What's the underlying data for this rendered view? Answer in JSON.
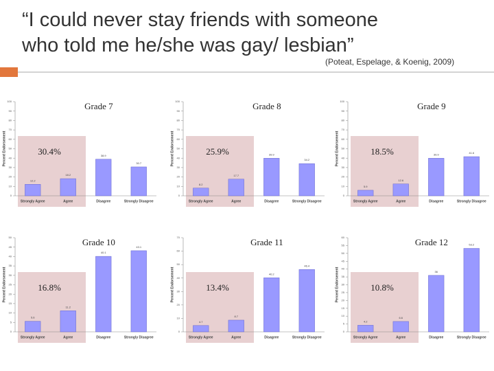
{
  "title": "“I could never stay friends with someone who told me he/she was gay/ lesbian”",
  "citation": "(Poteat, Espelage, & Koenig, 2009)",
  "chart_data": [
    {
      "type": "bar",
      "title": "Grade 7",
      "annotation": "30.4%",
      "ylabel": "Percent Endorsement",
      "color": "#9999ff",
      "categories": [
        "Strongly Agree",
        "Agree",
        "Disagree",
        "Strongly Disagree"
      ],
      "values": [
        12.2,
        18.2,
        38.9,
        30.7
      ],
      "ylim": [
        0,
        100
      ],
      "yticks": [
        0,
        10,
        20,
        30,
        40,
        50,
        60,
        70,
        80,
        90,
        100
      ]
    },
    {
      "type": "bar",
      "title": "Grade 8",
      "annotation": "25.9%",
      "ylabel": "Percent Endorsement",
      "color": "#9999ff",
      "categories": [
        "Strongly Agree",
        "Agree",
        "Disagree",
        "Strongly Disagree"
      ],
      "values": [
        8.2,
        17.7,
        39.9,
        34.2
      ],
      "ylim": [
        0,
        100
      ],
      "yticks": [
        0,
        10,
        20,
        30,
        40,
        50,
        60,
        70,
        80,
        90,
        100
      ]
    },
    {
      "type": "bar",
      "title": "Grade 9",
      "annotation": "18.5%",
      "ylabel": "Percent Endorsement",
      "color": "#9999ff",
      "categories": [
        "Strongly Agree",
        "Agree",
        "Disagree",
        "Strongly Disagree"
      ],
      "values": [
        5.9,
        12.6,
        39.9,
        41.6
      ],
      "ylim": [
        0,
        100
      ],
      "yticks": [
        0,
        10,
        20,
        30,
        40,
        50,
        60,
        70,
        80,
        90,
        100
      ]
    },
    {
      "type": "bar",
      "title": "Grade 10",
      "annotation": "16.8%",
      "ylabel": "Percent Endorsement",
      "color": "#9999ff",
      "categories": [
        "Strongly Agree",
        "Agree",
        "Disagree",
        "Strongly Disagree"
      ],
      "values": [
        5.6,
        11.2,
        40.1,
        43.1
      ],
      "ylim": [
        0,
        50
      ],
      "yticks": [
        0,
        5,
        10,
        15,
        20,
        25,
        30,
        35,
        40,
        45,
        50
      ]
    },
    {
      "type": "bar",
      "title": "Grade 11",
      "annotation": "13.4%",
      "ylabel": "Percent Endorsement",
      "color": "#9999ff",
      "categories": [
        "Strongly Agree",
        "Agree",
        "Disagree",
        "Strongly Disagree"
      ],
      "values": [
        4.7,
        8.7,
        40.2,
        46.4
      ],
      "ylim": [
        0,
        70
      ],
      "yticks": [
        0,
        10,
        20,
        30,
        40,
        50,
        60,
        70
      ]
    },
    {
      "type": "bar",
      "title": "Grade 12",
      "annotation": "10.8%",
      "ylabel": "Percent Endorsement",
      "color": "#9999ff",
      "categories": [
        "Strongly Agree",
        "Agree",
        "Disagree",
        "Strongly Disagree"
      ],
      "values": [
        4.2,
        6.6,
        36,
        53.2
      ],
      "ylim": [
        0,
        60
      ],
      "yticks": [
        0,
        5,
        10,
        15,
        20,
        25,
        30,
        35,
        40,
        45,
        50,
        55,
        60
      ]
    }
  ]
}
